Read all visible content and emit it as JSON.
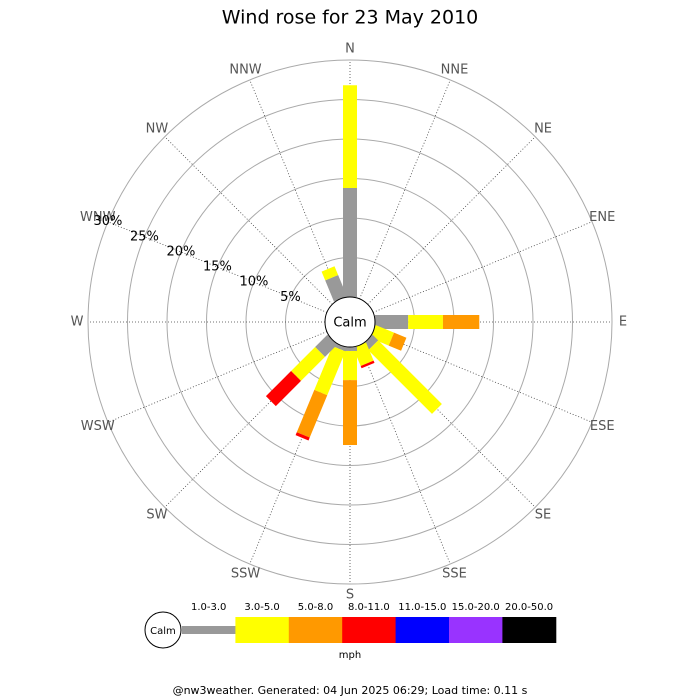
{
  "chart_data": {
    "type": "wind-rose",
    "title": "Wind rose for 23 May 2010",
    "categories": [
      "N",
      "NNE",
      "NE",
      "ENE",
      "E",
      "ESE",
      "SE",
      "SSE",
      "S",
      "SSW",
      "SW",
      "WSW",
      "W",
      "WNW",
      "NW",
      "NNW"
    ],
    "calm_label": "Calm",
    "units": "mph",
    "rlim": [
      0,
      30
    ],
    "rticks": [
      {
        "value": 5,
        "label": "5%"
      },
      {
        "value": 10,
        "label": "10%"
      },
      {
        "value": 15,
        "label": "15%"
      },
      {
        "value": 20,
        "label": "20%"
      },
      {
        "value": 25,
        "label": "25%"
      },
      {
        "value": 30,
        "label": "30%"
      }
    ],
    "series": [
      {
        "name": "1.0-3.0",
        "color": "#999999",
        "values": [
          13.8,
          0,
          0,
          0,
          4.2,
          0,
          1.0,
          0,
          0.5,
          0.5,
          2.2,
          0,
          0,
          0,
          0,
          2.9
        ]
      },
      {
        "name": "3.0-5.0",
        "color": "#ffff00",
        "values": [
          13.0,
          0,
          0,
          0,
          4.4,
          2.5,
          11.4,
          2.5,
          3.7,
          6.0,
          4.3,
          0,
          0,
          0,
          0,
          1.2
        ]
      },
      {
        "name": "5.0-8.0",
        "color": "#ff9900",
        "values": [
          0,
          0,
          0,
          0,
          4.6,
          1.7,
          0,
          0,
          8.2,
          5.8,
          0,
          0,
          0,
          0,
          0,
          0
        ]
      },
      {
        "name": "8.0-11.0",
        "color": "#ff0000",
        "values": [
          0,
          0,
          0,
          0,
          0,
          0,
          0,
          0.3,
          0,
          0.4,
          4.5,
          0,
          0,
          0,
          0,
          0
        ]
      },
      {
        "name": "11.0-15.0",
        "color": "#0000ff",
        "values": [
          0,
          0,
          0,
          0,
          0,
          0,
          0,
          0,
          0,
          0,
          0,
          0,
          0,
          0,
          0,
          0
        ]
      },
      {
        "name": "15.0-20.0",
        "color": "#9933ff",
        "values": [
          0,
          0,
          0,
          0,
          0,
          0,
          0,
          0,
          0,
          0,
          0,
          0,
          0,
          0,
          0,
          0
        ]
      },
      {
        "name": "20.0-50.0",
        "color": "#000000",
        "values": [
          0,
          0,
          0,
          0,
          0,
          0,
          0,
          0,
          0,
          0,
          0,
          0,
          0,
          0,
          0,
          0
        ]
      }
    ],
    "footer": "@nw3weather. Generated: 04 Jun 2025 06:29; Load time: 0.11 s"
  }
}
